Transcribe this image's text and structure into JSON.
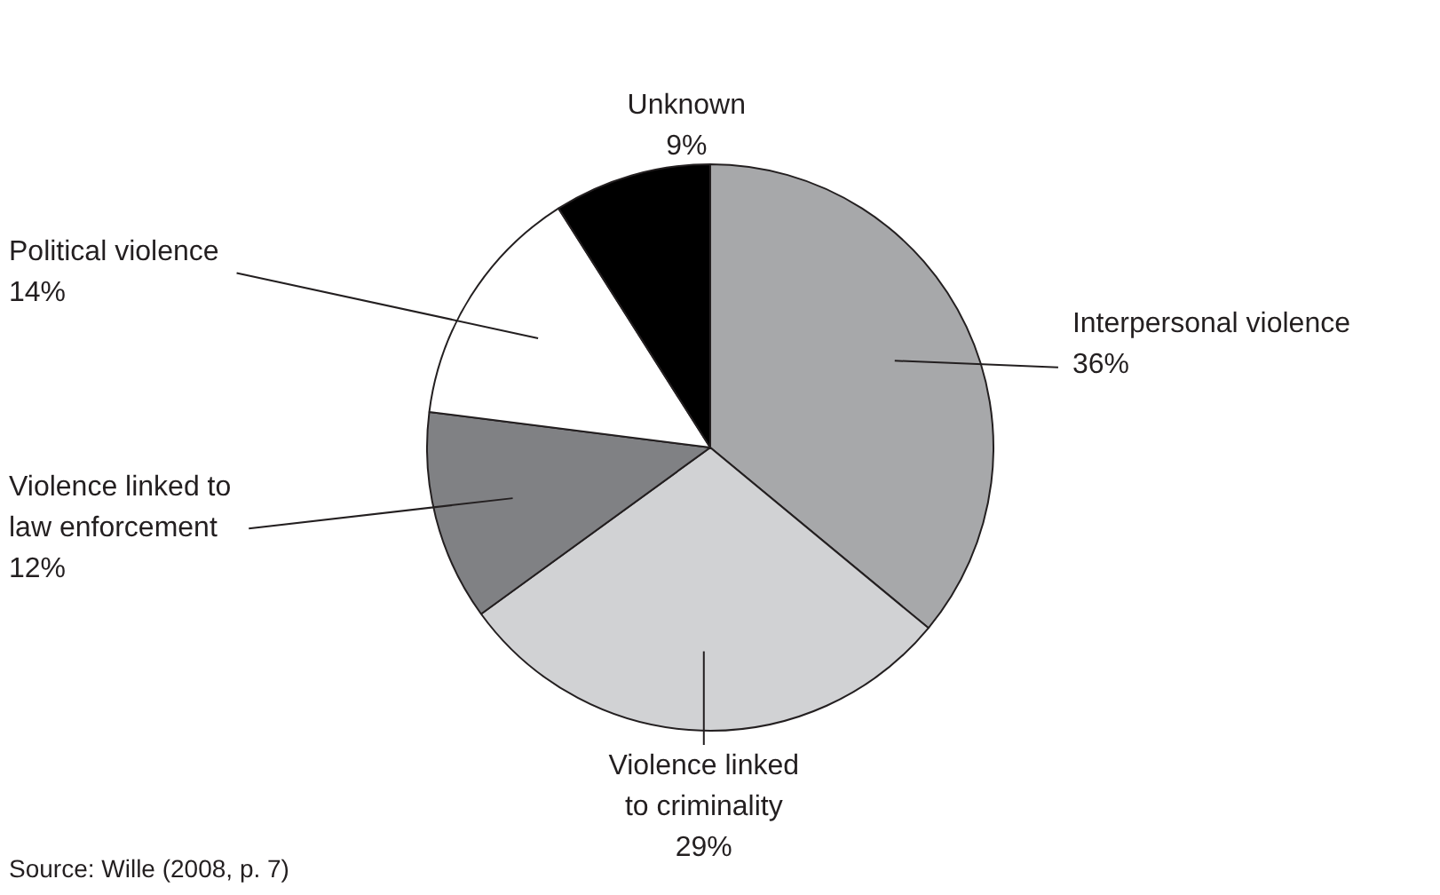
{
  "chart_data": {
    "type": "pie",
    "categories": [
      "Interpersonal violence",
      "Violence linked to criminality",
      "Violence linked to law enforcement",
      "Political violence",
      "Unknown"
    ],
    "values": [
      36,
      29,
      12,
      14,
      9
    ],
    "value_labels": [
      "36%",
      "29%",
      "12%",
      "14%",
      "9%"
    ],
    "colors": [
      "#a7a8aa",
      "#d1d2d4",
      "#808184",
      "#ffffff",
      "#000000"
    ],
    "legend": false,
    "annotations": [
      "Source: Wille (2008, p. 7)"
    ]
  }
}
